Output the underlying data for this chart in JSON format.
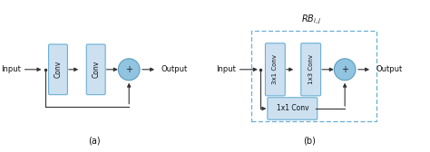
{
  "fig_width": 4.74,
  "fig_height": 1.68,
  "dpi": 100,
  "bg_color": "#ffffff",
  "box_facecolor": "#cce0f0",
  "box_edgecolor": "#6aafd4",
  "circle_facecolor": "#91c4e0",
  "circle_edgecolor": "#5a9dbf",
  "arrow_color": "#333333",
  "text_color": "#111111",
  "dashed_border_color": "#6aafd4",
  "label_a": "(a)",
  "label_b": "(b)",
  "rb_label": "$RB_{i,j}$"
}
